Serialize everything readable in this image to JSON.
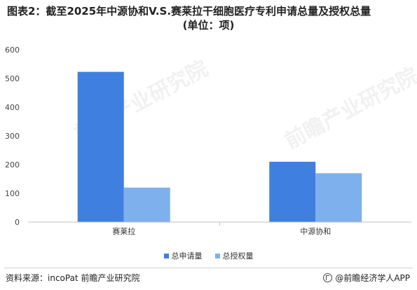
{
  "title_line1": "图表2：截至2025年中源协和V.S.赛莱拉干细胞医疗专利申请总量及授权总量",
  "title_line2": "(单位：项)",
  "source_text": "资料来源：incoPat 前瞻产业研究院",
  "brand_text": "@前瞻经济学人APP",
  "watermark_text": "前瞻产业研究院",
  "colors": {
    "series1": "#3f7fe0",
    "series2": "#7fb0ee",
    "axis": "#bfbfbf"
  },
  "chart_data": {
    "type": "bar",
    "categories": [
      "赛莱拉",
      "中源协和"
    ],
    "series": [
      {
        "name": "总申请量",
        "values": [
          523,
          210
        ]
      },
      {
        "name": "总授权量",
        "values": [
          120,
          170
        ]
      }
    ],
    "ylim": [
      0,
      600
    ],
    "yticks": [
      0,
      100,
      200,
      300,
      400,
      500,
      600
    ],
    "grid": false,
    "legend": "bottom"
  }
}
